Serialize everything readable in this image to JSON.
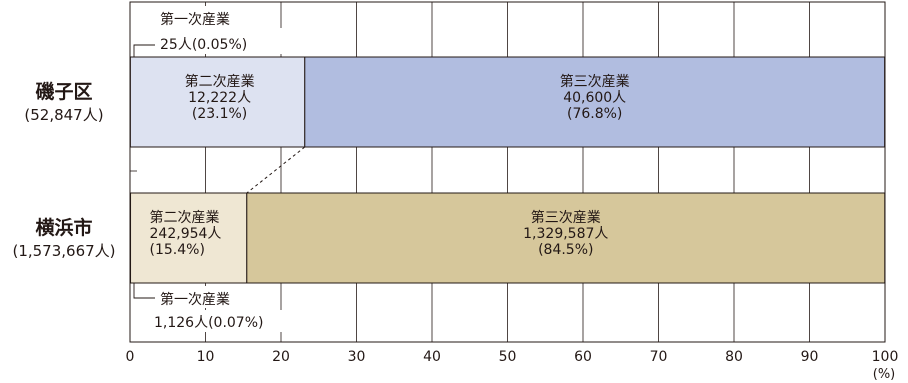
{
  "chart_data": {
    "type": "bar",
    "orientation": "horizontal",
    "stacked": true,
    "xlim": [
      0,
      100
    ],
    "x_ticks": [
      0,
      10,
      20,
      30,
      40,
      50,
      60,
      70,
      80,
      90,
      100
    ],
    "x_unit": "(%)",
    "grid": true,
    "categories": [
      {
        "name": "磯子区",
        "total": "(52,847人)"
      },
      {
        "name": "横浜市",
        "total": "(1,573,667人)"
      }
    ],
    "series": [
      {
        "name": "第一次産業",
        "values": [
          0.05,
          0.07
        ],
        "labels": [
          [
            "第一次産業",
            "25人(0.05%)"
          ],
          [
            "第一次産業",
            "1,126人(0.07%)"
          ]
        ],
        "colors": [
          "#ffffff",
          "#ffffff"
        ]
      },
      {
        "name": "第二次産業",
        "values": [
          23.1,
          15.4
        ],
        "labels": [
          [
            "第二次産業",
            "12,222人",
            "(23.1%)"
          ],
          [
            "第二次産業",
            "242,954人",
            "(15.4%)"
          ]
        ],
        "colors": [
          "#dde2f1",
          "#efe7d3"
        ]
      },
      {
        "name": "第三次産業",
        "values": [
          76.8,
          84.5
        ],
        "labels": [
          [
            "第三次産業",
            "40,600人",
            "(76.8%)"
          ],
          [
            "第三次産業",
            "1,329,587人",
            "(84.5%)"
          ]
        ],
        "colors": [
          "#b1bde0",
          "#d6c79b"
        ]
      }
    ]
  }
}
